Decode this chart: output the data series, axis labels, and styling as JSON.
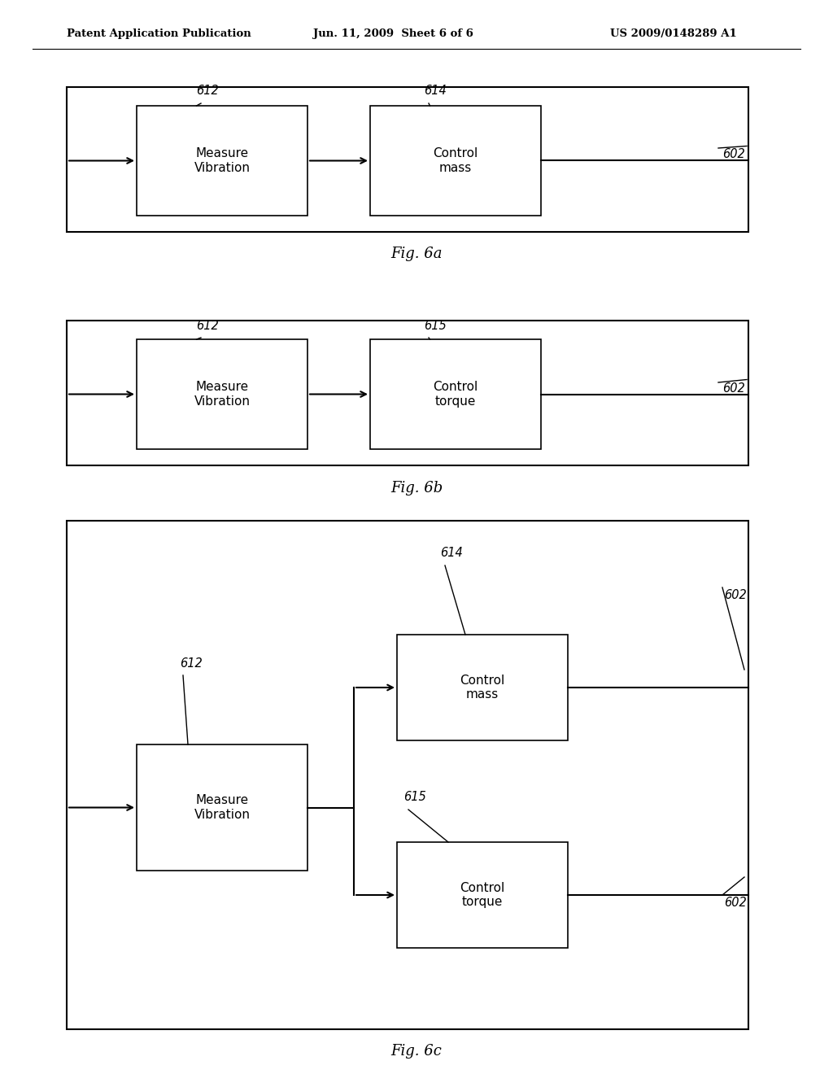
{
  "header_left": "Patent Application Publication",
  "header_mid": "Jun. 11, 2009  Sheet 6 of 6",
  "header_right": "US 2009/0148289 A1",
  "bg_color": "#ffffff",
  "fig_width": 10.24,
  "fig_height": 13.2,
  "fig_dpi": 100
}
